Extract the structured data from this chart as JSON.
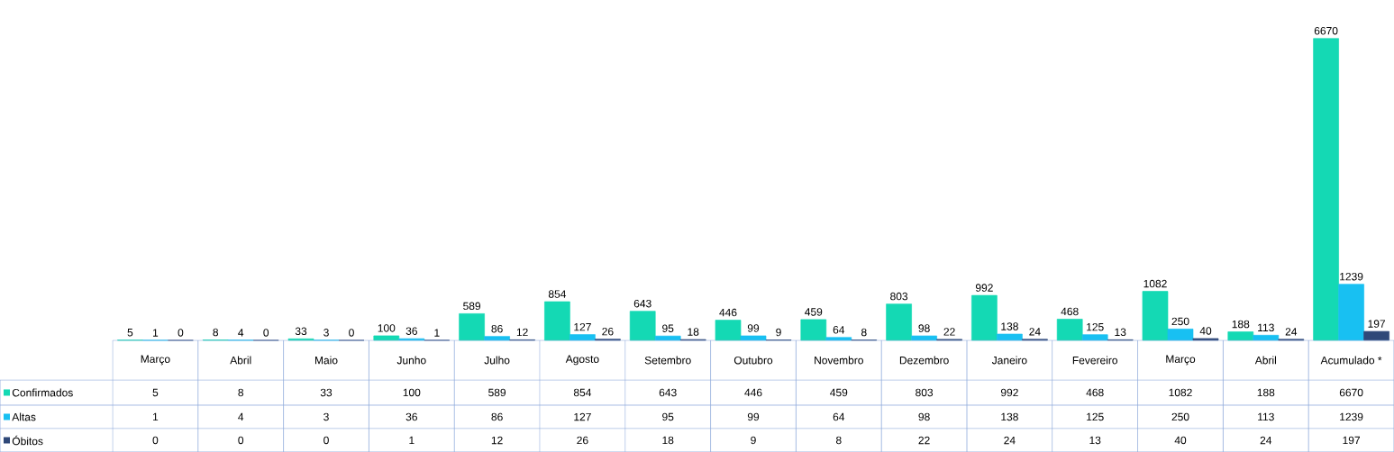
{
  "chart_data": {
    "type": "bar",
    "categories": [
      "Março",
      "Abril",
      "Maio",
      "Junho",
      "Julho",
      "Agosto",
      "Setembro",
      "Outubro",
      "Novembro",
      "Dezembro",
      "Janeiro",
      "Fevereiro",
      "Março",
      "Abril",
      "Acumulado *"
    ],
    "series": [
      {
        "name": "Confirmados",
        "color": "#14d9b4",
        "values": [
          5,
          8,
          33,
          100,
          589,
          854,
          643,
          446,
          459,
          803,
          992,
          468,
          1082,
          188,
          6670
        ],
        "value_labels": [
          "5",
          "8",
          "33",
          "100",
          "589",
          "854",
          "643",
          "446",
          "459",
          "803",
          "992",
          "468",
          "1082",
          "188",
          "6670"
        ]
      },
      {
        "name": "Altas",
        "color": "#18c0f2",
        "values": [
          1,
          4,
          3,
          36,
          86,
          127,
          95,
          99,
          64,
          98,
          138,
          125,
          250,
          113,
          1239
        ],
        "value_labels": [
          "1",
          "4",
          "3",
          "36",
          "86",
          "127",
          "95",
          "99",
          "64",
          "98",
          "138",
          "125",
          "250",
          "113",
          "1239"
        ]
      },
      {
        "name": "Óbitos",
        "color": "#2f4878",
        "values": [
          0,
          0,
          0,
          1,
          12,
          26,
          18,
          9,
          8,
          22,
          24,
          13,
          40,
          24,
          197
        ],
        "value_labels": [
          "0",
          "0",
          "0",
          "1",
          "12",
          "26",
          "18",
          "9",
          "8",
          "22",
          "24",
          "13",
          "40",
          "24",
          "197"
        ]
      }
    ],
    "annotations": [
      "5",
      "8",
      "33",
      "100",
      "589",
      "854",
      "643",
      "446",
      "459",
      "803",
      "992",
      "468",
      "1082",
      "188",
      "6670",
      "1",
      "4",
      "3",
      "36",
      "86",
      "127",
      "95",
      "99",
      "64",
      "98",
      "138",
      "125",
      "250",
      "113",
      "1239",
      "0",
      "0",
      "0",
      "1",
      "12",
      "26",
      "18",
      "9",
      "8",
      "22",
      "24",
      "13",
      "40",
      "24",
      "197"
    ],
    "legend": "bottom left"
  }
}
